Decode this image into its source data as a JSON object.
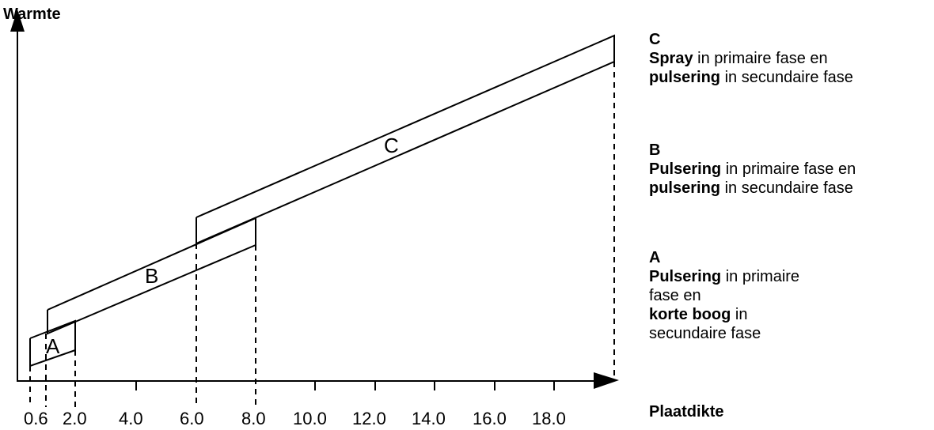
{
  "y_axis_title": "Warmte",
  "x_axis_title": "Plaatdikte",
  "x_tick_labels": [
    "0.6",
    "2.0",
    "4.0",
    "6.0",
    "8.0",
    "10.0",
    "12.0",
    "14.0",
    "16.0",
    "18.0"
  ],
  "bands": [
    {
      "id": "C",
      "label": "C",
      "legend_key": "C",
      "legend_bold_1": "Spray",
      "legend_text_1": " in primaire fase en",
      "legend_bold_2": "pulsering",
      "legend_text_2": " in secundaire fase"
    },
    {
      "id": "B",
      "label": "B",
      "legend_key": "B",
      "legend_bold_1": "Pulsering",
      "legend_text_1": " in primaire fase en",
      "legend_bold_2": "pulsering",
      "legend_text_2": " in secundaire fase"
    },
    {
      "id": "A",
      "label": "A",
      "legend_key": "A",
      "legend_bold_1": "Pulsering",
      "legend_text_1": " in primaire fase en",
      "legend_bold_2": "korte boog",
      "legend_text_2": " in secundaire fase"
    }
  ]
}
